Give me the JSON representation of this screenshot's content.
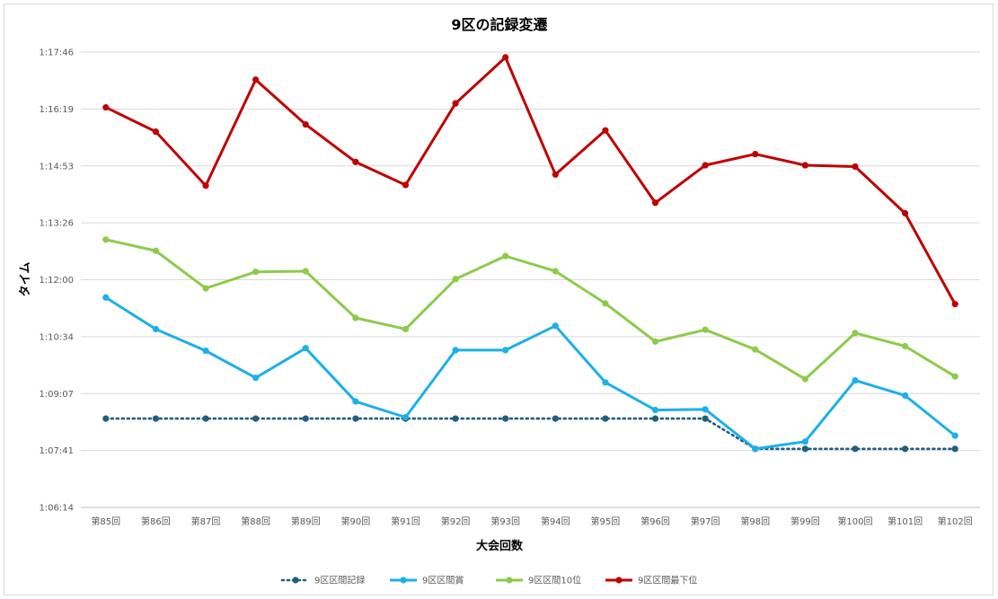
{
  "chart_data": {
    "type": "line",
    "title": "9区の記録変遷",
    "xlabel": "大会回数",
    "ylabel": "タイム",
    "categories": [
      "第85回",
      "第86回",
      "第87回",
      "第88回",
      "第89回",
      "第90回",
      "第91回",
      "第92回",
      "第93回",
      "第94回",
      "第95回",
      "第96回",
      "第97回",
      "第98回",
      "第99回",
      "第100回",
      "第101回",
      "第102回"
    ],
    "y_ticks": [
      "1:06:14",
      "1:07:41",
      "1:09:07",
      "1:10:34",
      "1:12:00",
      "1:13:26",
      "1:14:53",
      "1:16:19",
      "1:17:46"
    ],
    "ylim_seconds": [
      3974,
      4666
    ],
    "grid": true,
    "legend_position": "bottom",
    "series": [
      {
        "name": "9区区間記録",
        "color": "#1f5f7f",
        "style": "dotted",
        "values": [
          4109,
          4109,
          4109,
          4109,
          4109,
          4109,
          4109,
          4109,
          4109,
          4109,
          4109,
          4109,
          4109,
          4063,
          4063,
          4063,
          4063,
          4063
        ]
      },
      {
        "name": "9区区間賞",
        "color": "#1cb0e8",
        "style": "solid",
        "values": [
          4293,
          4245,
          4212,
          4171,
          4216,
          4135,
          4111,
          4213,
          4213,
          4250,
          4164,
          4122,
          4123,
          4063,
          4074,
          4167,
          4144,
          4083
        ]
      },
      {
        "name": "9区区間10位",
        "color": "#8ccb4b",
        "style": "solid",
        "values": [
          4381,
          4364,
          4307,
          4332,
          4333,
          4262,
          4245,
          4321,
          4356,
          4333,
          4284,
          4226,
          4244,
          4214,
          4169,
          4239,
          4219,
          4173
        ]
      },
      {
        "name": "9区区間最下位",
        "color": "#c00000",
        "style": "solid",
        "values": [
          4582,
          4545,
          4463,
          4624,
          4556,
          4499,
          4464,
          4588,
          4658,
          4480,
          4547,
          4437,
          4494,
          4511,
          4494,
          4492,
          4421,
          4283
        ]
      }
    ]
  }
}
